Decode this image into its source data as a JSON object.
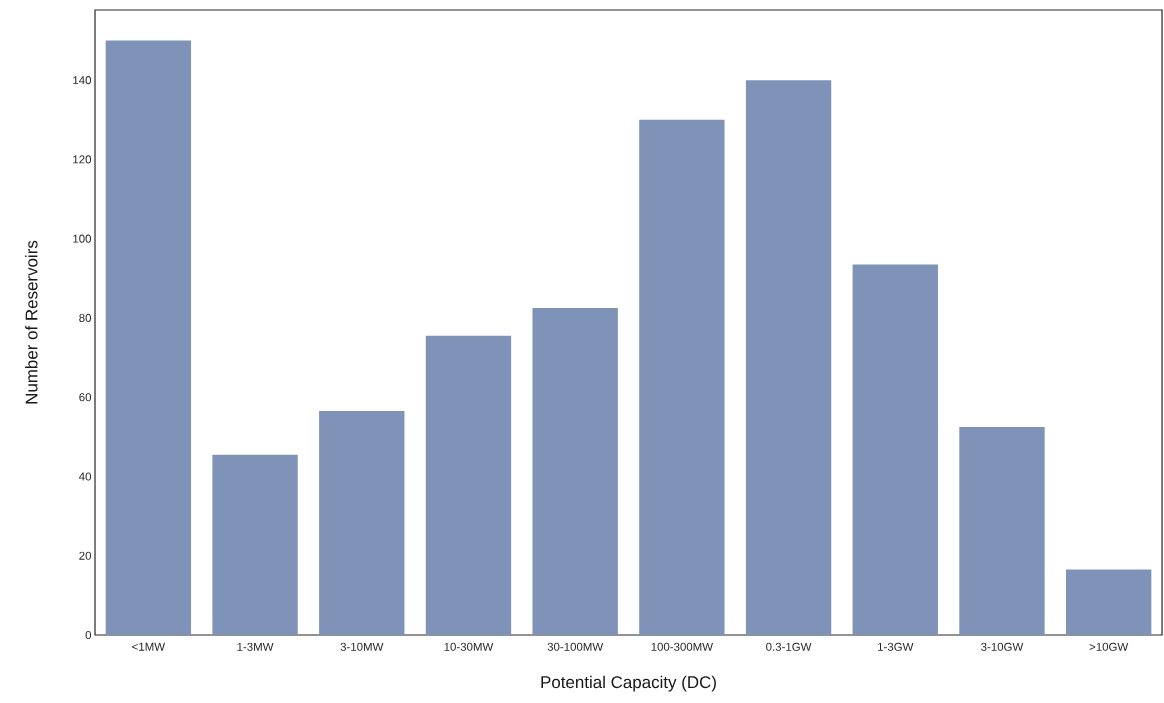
{
  "chart_data": {
    "type": "bar",
    "xlabel": "Potential Capacity (DC)",
    "ylabel": "Number of Reservoirs",
    "categories": [
      "<1MW",
      "1-3MW",
      "3-10MW",
      "10-30MW",
      "30-100MW",
      "100-300MW",
      "0.3-1GW",
      "1-3GW",
      "3-10GW",
      ">10GW"
    ],
    "values": [
      150,
      45.5,
      56.5,
      75.5,
      82.5,
      130,
      140,
      93.5,
      52.5,
      16.5
    ],
    "color": "#7f93b8",
    "ylim": [
      0,
      157.7
    ],
    "yticks": [
      0,
      20,
      40,
      60,
      80,
      100,
      120,
      140
    ],
    "grid": false
  }
}
